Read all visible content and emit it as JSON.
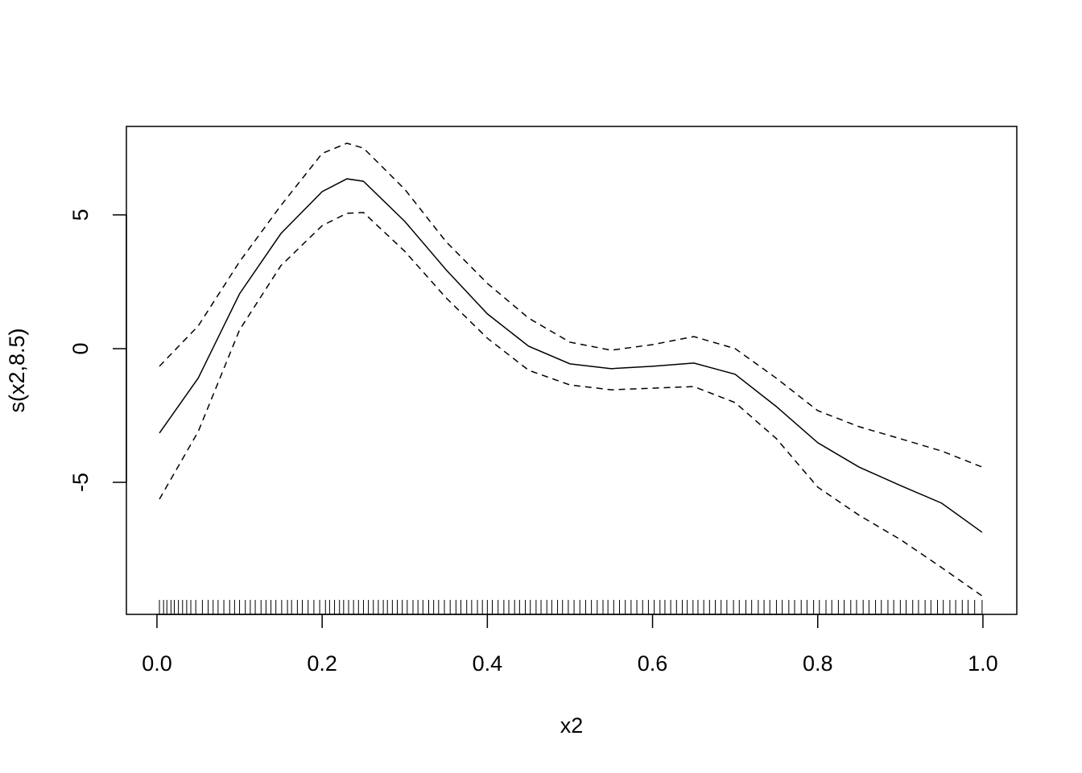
{
  "chart_data": {
    "type": "line",
    "x_label": "x2",
    "y_label": "s(x2,8.5)",
    "x": [
      0.003,
      0.05,
      0.1,
      0.15,
      0.2,
      0.23,
      0.25,
      0.3,
      0.35,
      0.4,
      0.45,
      0.5,
      0.55,
      0.6,
      0.65,
      0.7,
      0.75,
      0.8,
      0.85,
      0.9,
      0.95,
      0.999
    ],
    "series": [
      {
        "color": "#000000",
        "line_style": "solid",
        "values": [
          -3.16,
          -1.1,
          2.05,
          4.3,
          5.87,
          6.35,
          6.26,
          4.76,
          2.95,
          1.3,
          0.09,
          -0.57,
          -0.75,
          -0.66,
          -0.54,
          -0.96,
          -2.17,
          -3.52,
          -4.43,
          -5.12,
          -5.78,
          -6.87
        ]
      },
      {
        "color": "#000000",
        "line_style": "dashed",
        "values": [
          -0.66,
          0.85,
          3.25,
          5.35,
          7.3,
          7.68,
          7.5,
          5.96,
          4.0,
          2.44,
          1.14,
          0.24,
          -0.06,
          0.15,
          0.45,
          0.0,
          -1.11,
          -2.32,
          -2.92,
          -3.37,
          -3.83,
          -4.43
        ]
      },
      {
        "color": "#000000",
        "line_style": "dashed",
        "values": [
          -5.63,
          -3.1,
          0.7,
          3.1,
          4.6,
          5.06,
          5.09,
          3.64,
          1.9,
          0.39,
          -0.81,
          -1.36,
          -1.54,
          -1.48,
          -1.42,
          -2.02,
          -3.37,
          -5.18,
          -6.23,
          -7.14,
          -8.19,
          -9.25
        ]
      }
    ],
    "rug": [
      0.003,
      0.008,
      0.012,
      0.017,
      0.021,
      0.026,
      0.031,
      0.036,
      0.041,
      0.047,
      0.055,
      0.062,
      0.068,
      0.074,
      0.081,
      0.088,
      0.094,
      0.1,
      0.107,
      0.113,
      0.119,
      0.126,
      0.132,
      0.138,
      0.144,
      0.151,
      0.158,
      0.163,
      0.17,
      0.176,
      0.183,
      0.19,
      0.197,
      0.204,
      0.209,
      0.215,
      0.221,
      0.226,
      0.232,
      0.238,
      0.244,
      0.25,
      0.256,
      0.262,
      0.268,
      0.274,
      0.279,
      0.285,
      0.291,
      0.297,
      0.303,
      0.31,
      0.316,
      0.322,
      0.329,
      0.335,
      0.341,
      0.348,
      0.355,
      0.362,
      0.368,
      0.375,
      0.381,
      0.388,
      0.394,
      0.4,
      0.406,
      0.413,
      0.42,
      0.426,
      0.433,
      0.439,
      0.446,
      0.452,
      0.459,
      0.465,
      0.472,
      0.478,
      0.485,
      0.491,
      0.498,
      0.505,
      0.512,
      0.519,
      0.526,
      0.533,
      0.54,
      0.546,
      0.553,
      0.56,
      0.567,
      0.574,
      0.581,
      0.588,
      0.595,
      0.602,
      0.609,
      0.615,
      0.622,
      0.629,
      0.636,
      0.642,
      0.649,
      0.655,
      0.662,
      0.669,
      0.676,
      0.683,
      0.69,
      0.698,
      0.705,
      0.713,
      0.72,
      0.728,
      0.735,
      0.742,
      0.75,
      0.757,
      0.765,
      0.772,
      0.78,
      0.787,
      0.795,
      0.802,
      0.81,
      0.817,
      0.825,
      0.832,
      0.84,
      0.847,
      0.855,
      0.862,
      0.87,
      0.877,
      0.885,
      0.892,
      0.9,
      0.907,
      0.915,
      0.922,
      0.93,
      0.937,
      0.945,
      0.952,
      0.96,
      0.967,
      0.975,
      0.982,
      0.99,
      0.999
    ],
    "xlim": [
      -0.037,
      1.041
    ],
    "ylim": [
      -9.94,
      8.31
    ],
    "xticks": [
      {
        "value": 0,
        "label": "0.0"
      },
      0.2,
      0.4,
      0.6,
      0.8,
      {
        "value": 1,
        "label": "1.0"
      }
    ],
    "yticks": [
      -5,
      0,
      5
    ]
  }
}
